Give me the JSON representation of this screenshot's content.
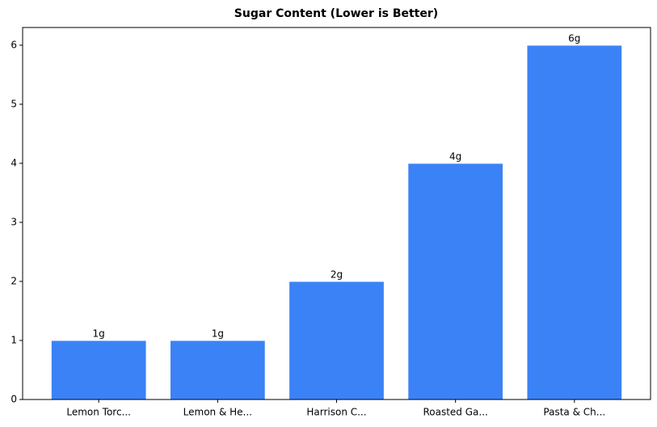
{
  "chart_data": {
    "type": "bar",
    "title": "Sugar Content (Lower is Better)",
    "categories": [
      "Lemon Torc...",
      "Lemon & He...",
      "Harrison C...",
      "Roasted Ga...",
      "Pasta & Ch..."
    ],
    "values": [
      1,
      1,
      2,
      4,
      6
    ],
    "value_labels": [
      "1g",
      "1g",
      "2g",
      "4g",
      "6g"
    ],
    "color": "#3b82f6",
    "ylim": [
      0,
      6.3
    ],
    "yticks": [
      0,
      1,
      2,
      3,
      4,
      5,
      6
    ],
    "grid": false
  }
}
